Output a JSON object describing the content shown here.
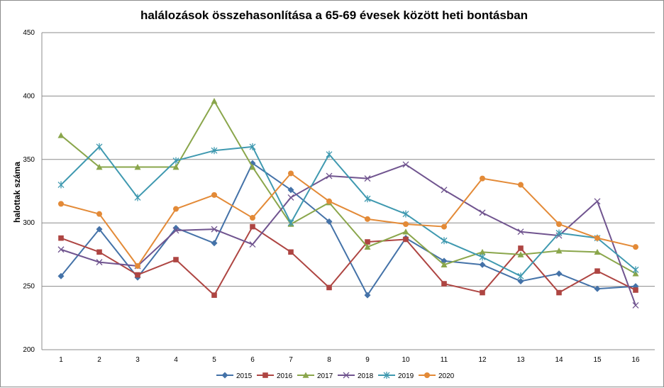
{
  "chart_data": {
    "type": "line",
    "title": "halálozások összehasonlítása a 65-69 évesek között heti bontásban",
    "xlabel": "",
    "ylabel": "halottak száma",
    "ylim": [
      200,
      450
    ],
    "yticks": [
      200,
      250,
      300,
      350,
      400,
      450
    ],
    "x": [
      1,
      2,
      3,
      4,
      5,
      6,
      7,
      8,
      9,
      10,
      11,
      12,
      13,
      14,
      15,
      16
    ],
    "grid": "horizontal",
    "legend": "bottom",
    "series": [
      {
        "name": "2015",
        "color": "#4472a8",
        "marker": "diamond",
        "values": [
          258,
          295,
          257,
          296,
          284,
          347,
          326,
          301,
          243,
          288,
          270,
          267,
          254,
          260,
          248,
          250
        ]
      },
      {
        "name": "2016",
        "color": "#ae4542",
        "marker": "square",
        "values": [
          288,
          277,
          259,
          271,
          243,
          297,
          277,
          249,
          285,
          287,
          252,
          245,
          280,
          245,
          262,
          247
        ]
      },
      {
        "name": "2017",
        "color": "#8aa64b",
        "marker": "triangle",
        "values": [
          369,
          344,
          344,
          344,
          396,
          344,
          299,
          316,
          281,
          293,
          267,
          277,
          275,
          278,
          277,
          260
        ]
      },
      {
        "name": "2018",
        "color": "#70548f",
        "marker": "x",
        "values": [
          279,
          269,
          266,
          294,
          295,
          283,
          320,
          337,
          335,
          346,
          326,
          308,
          293,
          290,
          317,
          235
        ]
      },
      {
        "name": "2019",
        "color": "#3f99b0",
        "marker": "star",
        "values": [
          330,
          360,
          320,
          349,
          357,
          360,
          300,
          354,
          319,
          307,
          286,
          273,
          258,
          292,
          288,
          263
        ]
      },
      {
        "name": "2020",
        "color": "#e38a37",
        "marker": "circle",
        "values": [
          315,
          307,
          266,
          311,
          322,
          304,
          339,
          317,
          303,
          299,
          297,
          335,
          330,
          299,
          288,
          281
        ]
      }
    ]
  }
}
